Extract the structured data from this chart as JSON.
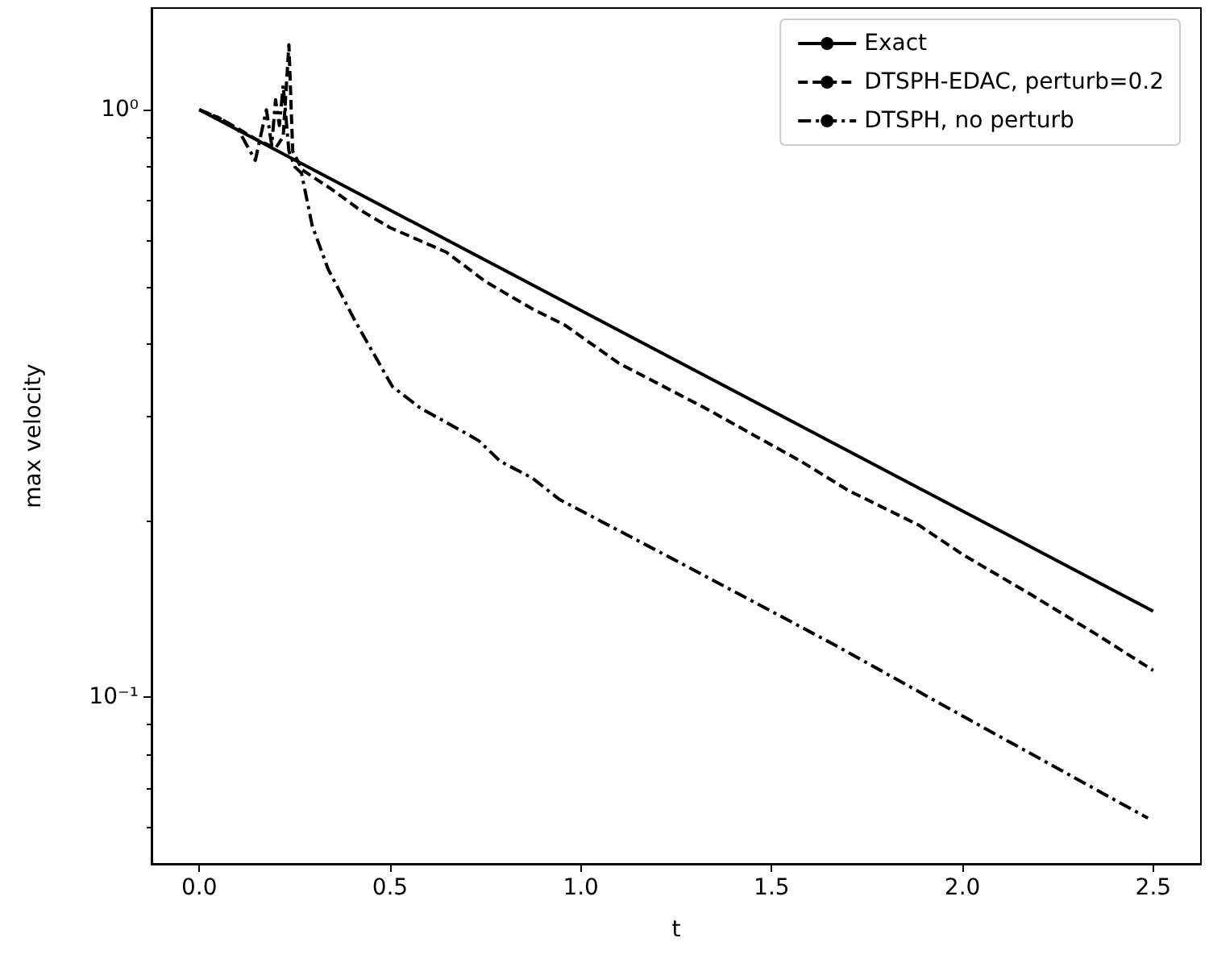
{
  "chart_data": {
    "type": "line",
    "xlabel": "t",
    "ylabel": "max velocity",
    "log": "y",
    "grid": false,
    "legend": "top right",
    "marker": "none",
    "xlim": [
      -0.125,
      2.625
    ],
    "xticks": [
      {
        "value": 0,
        "label": "0.0"
      },
      0.5,
      {
        "value": 1,
        "label": "1.0"
      },
      1.5,
      {
        "value": 2,
        "label": "2.0"
      },
      2.5
    ],
    "ylim": [
      0.052,
      1.49
    ],
    "yticks": [
      {
        "value": 0.1,
        "label": "10⁻¹"
      },
      {
        "value": 1,
        "label": "10⁰"
      },
      {
        "value": 0.06,
        "label": null
      },
      {
        "value": 0.07,
        "label": null
      },
      {
        "value": 0.08,
        "label": null
      },
      {
        "value": 0.09,
        "label": null
      },
      {
        "value": 0.2,
        "label": null
      },
      {
        "value": 0.3,
        "label": null
      },
      {
        "value": 0.4,
        "label": null
      },
      {
        "value": 0.5,
        "label": null
      },
      {
        "value": 0.6,
        "label": null
      },
      {
        "value": 0.7,
        "label": null
      },
      {
        "value": 0.8,
        "label": null
      },
      {
        "value": 0.9,
        "label": null
      }
    ],
    "series": [
      {
        "name": "Exact",
        "color": "#000000",
        "line_style": "solid",
        "x": [
          0,
          2.5
        ],
        "values": [
          1.0,
          0.14
        ]
      },
      {
        "name": "DTSPH-EDAC, perturb=0.2",
        "color": "#000000",
        "line_style": "dashed",
        "x": [
          0,
          0.05,
          0.1,
          0.15,
          0.2,
          0.22,
          0.235,
          0.245,
          0.27,
          0.35,
          0.42,
          0.5,
          0.648,
          0.75,
          0.873,
          0.958,
          1.1,
          1.324,
          1.45,
          1.577,
          1.7,
          1.887,
          2.0,
          2.183,
          2.35,
          2.5
        ],
        "values": [
          1.0,
          0.97,
          0.93,
          0.89,
          0.86,
          0.9,
          1.29,
          0.85,
          0.79,
          0.73,
          0.676,
          0.63,
          0.572,
          0.51,
          0.458,
          0.43,
          0.37,
          0.311,
          0.28,
          0.252,
          0.225,
          0.196,
          0.175,
          0.149,
          0.128,
          0.111
        ]
      },
      {
        "name": "DTSPH, no perturb",
        "color": "#000000",
        "line_style": "dashdot",
        "x": [
          0,
          0.05,
          0.1,
          0.147,
          0.176,
          0.19,
          0.2,
          0.21,
          0.22,
          0.235,
          0.25,
          0.268,
          0.296,
          0.338,
          0.41,
          0.506,
          0.578,
          0.704,
          0.733,
          0.789,
          0.873,
          0.944,
          1.24,
          1.662,
          2.014,
          2.486
        ],
        "values": [
          1.0,
          0.97,
          0.93,
          0.82,
          1.0,
          0.87,
          1.04,
          0.94,
          1.1,
          0.85,
          0.8,
          0.78,
          0.635,
          0.535,
          0.435,
          0.338,
          0.311,
          0.28,
          0.273,
          0.252,
          0.236,
          0.217,
          0.172,
          0.123,
          0.0918,
          0.0622
        ]
      }
    ]
  }
}
